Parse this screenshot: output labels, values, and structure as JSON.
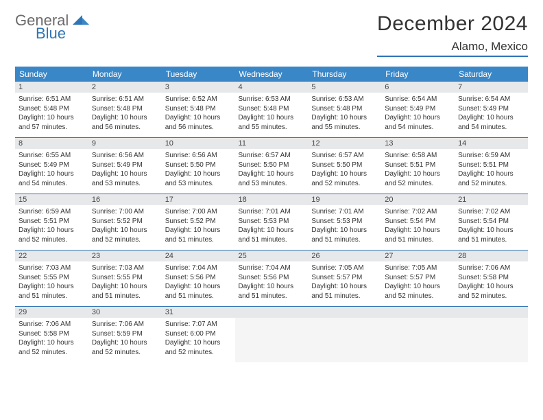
{
  "logo": {
    "word1": "General",
    "word2": "Blue"
  },
  "title": "December 2024",
  "location": "Alamo, Mexico",
  "colors": {
    "header_bg": "#3a87c8",
    "accent": "#2f75b5",
    "daynum_bg": "#e7e8ea",
    "text": "#333333",
    "logo_gray": "#6b6b6b"
  },
  "fonts": {
    "title_pt": 30,
    "location_pt": 17,
    "dow_pt": 12,
    "daynum_pt": 11,
    "cell_pt": 10
  },
  "day_names": [
    "Sunday",
    "Monday",
    "Tuesday",
    "Wednesday",
    "Thursday",
    "Friday",
    "Saturday"
  ],
  "weeks": [
    [
      {
        "n": "1",
        "sunrise": "6:51 AM",
        "sunset": "5:48 PM",
        "dl": "10 hours and 57 minutes."
      },
      {
        "n": "2",
        "sunrise": "6:51 AM",
        "sunset": "5:48 PM",
        "dl": "10 hours and 56 minutes."
      },
      {
        "n": "3",
        "sunrise": "6:52 AM",
        "sunset": "5:48 PM",
        "dl": "10 hours and 56 minutes."
      },
      {
        "n": "4",
        "sunrise": "6:53 AM",
        "sunset": "5:48 PM",
        "dl": "10 hours and 55 minutes."
      },
      {
        "n": "5",
        "sunrise": "6:53 AM",
        "sunset": "5:48 PM",
        "dl": "10 hours and 55 minutes."
      },
      {
        "n": "6",
        "sunrise": "6:54 AM",
        "sunset": "5:49 PM",
        "dl": "10 hours and 54 minutes."
      },
      {
        "n": "7",
        "sunrise": "6:54 AM",
        "sunset": "5:49 PM",
        "dl": "10 hours and 54 minutes."
      }
    ],
    [
      {
        "n": "8",
        "sunrise": "6:55 AM",
        "sunset": "5:49 PM",
        "dl": "10 hours and 54 minutes."
      },
      {
        "n": "9",
        "sunrise": "6:56 AM",
        "sunset": "5:49 PM",
        "dl": "10 hours and 53 minutes."
      },
      {
        "n": "10",
        "sunrise": "6:56 AM",
        "sunset": "5:50 PM",
        "dl": "10 hours and 53 minutes."
      },
      {
        "n": "11",
        "sunrise": "6:57 AM",
        "sunset": "5:50 PM",
        "dl": "10 hours and 53 minutes."
      },
      {
        "n": "12",
        "sunrise": "6:57 AM",
        "sunset": "5:50 PM",
        "dl": "10 hours and 52 minutes."
      },
      {
        "n": "13",
        "sunrise": "6:58 AM",
        "sunset": "5:51 PM",
        "dl": "10 hours and 52 minutes."
      },
      {
        "n": "14",
        "sunrise": "6:59 AM",
        "sunset": "5:51 PM",
        "dl": "10 hours and 52 minutes."
      }
    ],
    [
      {
        "n": "15",
        "sunrise": "6:59 AM",
        "sunset": "5:51 PM",
        "dl": "10 hours and 52 minutes."
      },
      {
        "n": "16",
        "sunrise": "7:00 AM",
        "sunset": "5:52 PM",
        "dl": "10 hours and 52 minutes."
      },
      {
        "n": "17",
        "sunrise": "7:00 AM",
        "sunset": "5:52 PM",
        "dl": "10 hours and 51 minutes."
      },
      {
        "n": "18",
        "sunrise": "7:01 AM",
        "sunset": "5:53 PM",
        "dl": "10 hours and 51 minutes."
      },
      {
        "n": "19",
        "sunrise": "7:01 AM",
        "sunset": "5:53 PM",
        "dl": "10 hours and 51 minutes."
      },
      {
        "n": "20",
        "sunrise": "7:02 AM",
        "sunset": "5:54 PM",
        "dl": "10 hours and 51 minutes."
      },
      {
        "n": "21",
        "sunrise": "7:02 AM",
        "sunset": "5:54 PM",
        "dl": "10 hours and 51 minutes."
      }
    ],
    [
      {
        "n": "22",
        "sunrise": "7:03 AM",
        "sunset": "5:55 PM",
        "dl": "10 hours and 51 minutes."
      },
      {
        "n": "23",
        "sunrise": "7:03 AM",
        "sunset": "5:55 PM",
        "dl": "10 hours and 51 minutes."
      },
      {
        "n": "24",
        "sunrise": "7:04 AM",
        "sunset": "5:56 PM",
        "dl": "10 hours and 51 minutes."
      },
      {
        "n": "25",
        "sunrise": "7:04 AM",
        "sunset": "5:56 PM",
        "dl": "10 hours and 51 minutes."
      },
      {
        "n": "26",
        "sunrise": "7:05 AM",
        "sunset": "5:57 PM",
        "dl": "10 hours and 51 minutes."
      },
      {
        "n": "27",
        "sunrise": "7:05 AM",
        "sunset": "5:57 PM",
        "dl": "10 hours and 52 minutes."
      },
      {
        "n": "28",
        "sunrise": "7:06 AM",
        "sunset": "5:58 PM",
        "dl": "10 hours and 52 minutes."
      }
    ],
    [
      {
        "n": "29",
        "sunrise": "7:06 AM",
        "sunset": "5:58 PM",
        "dl": "10 hours and 52 minutes."
      },
      {
        "n": "30",
        "sunrise": "7:06 AM",
        "sunset": "5:59 PM",
        "dl": "10 hours and 52 minutes."
      },
      {
        "n": "31",
        "sunrise": "7:07 AM",
        "sunset": "6:00 PM",
        "dl": "10 hours and 52 minutes."
      },
      null,
      null,
      null,
      null
    ]
  ],
  "labels": {
    "sunrise": "Sunrise:",
    "sunset": "Sunset:",
    "daylight": "Daylight:"
  }
}
